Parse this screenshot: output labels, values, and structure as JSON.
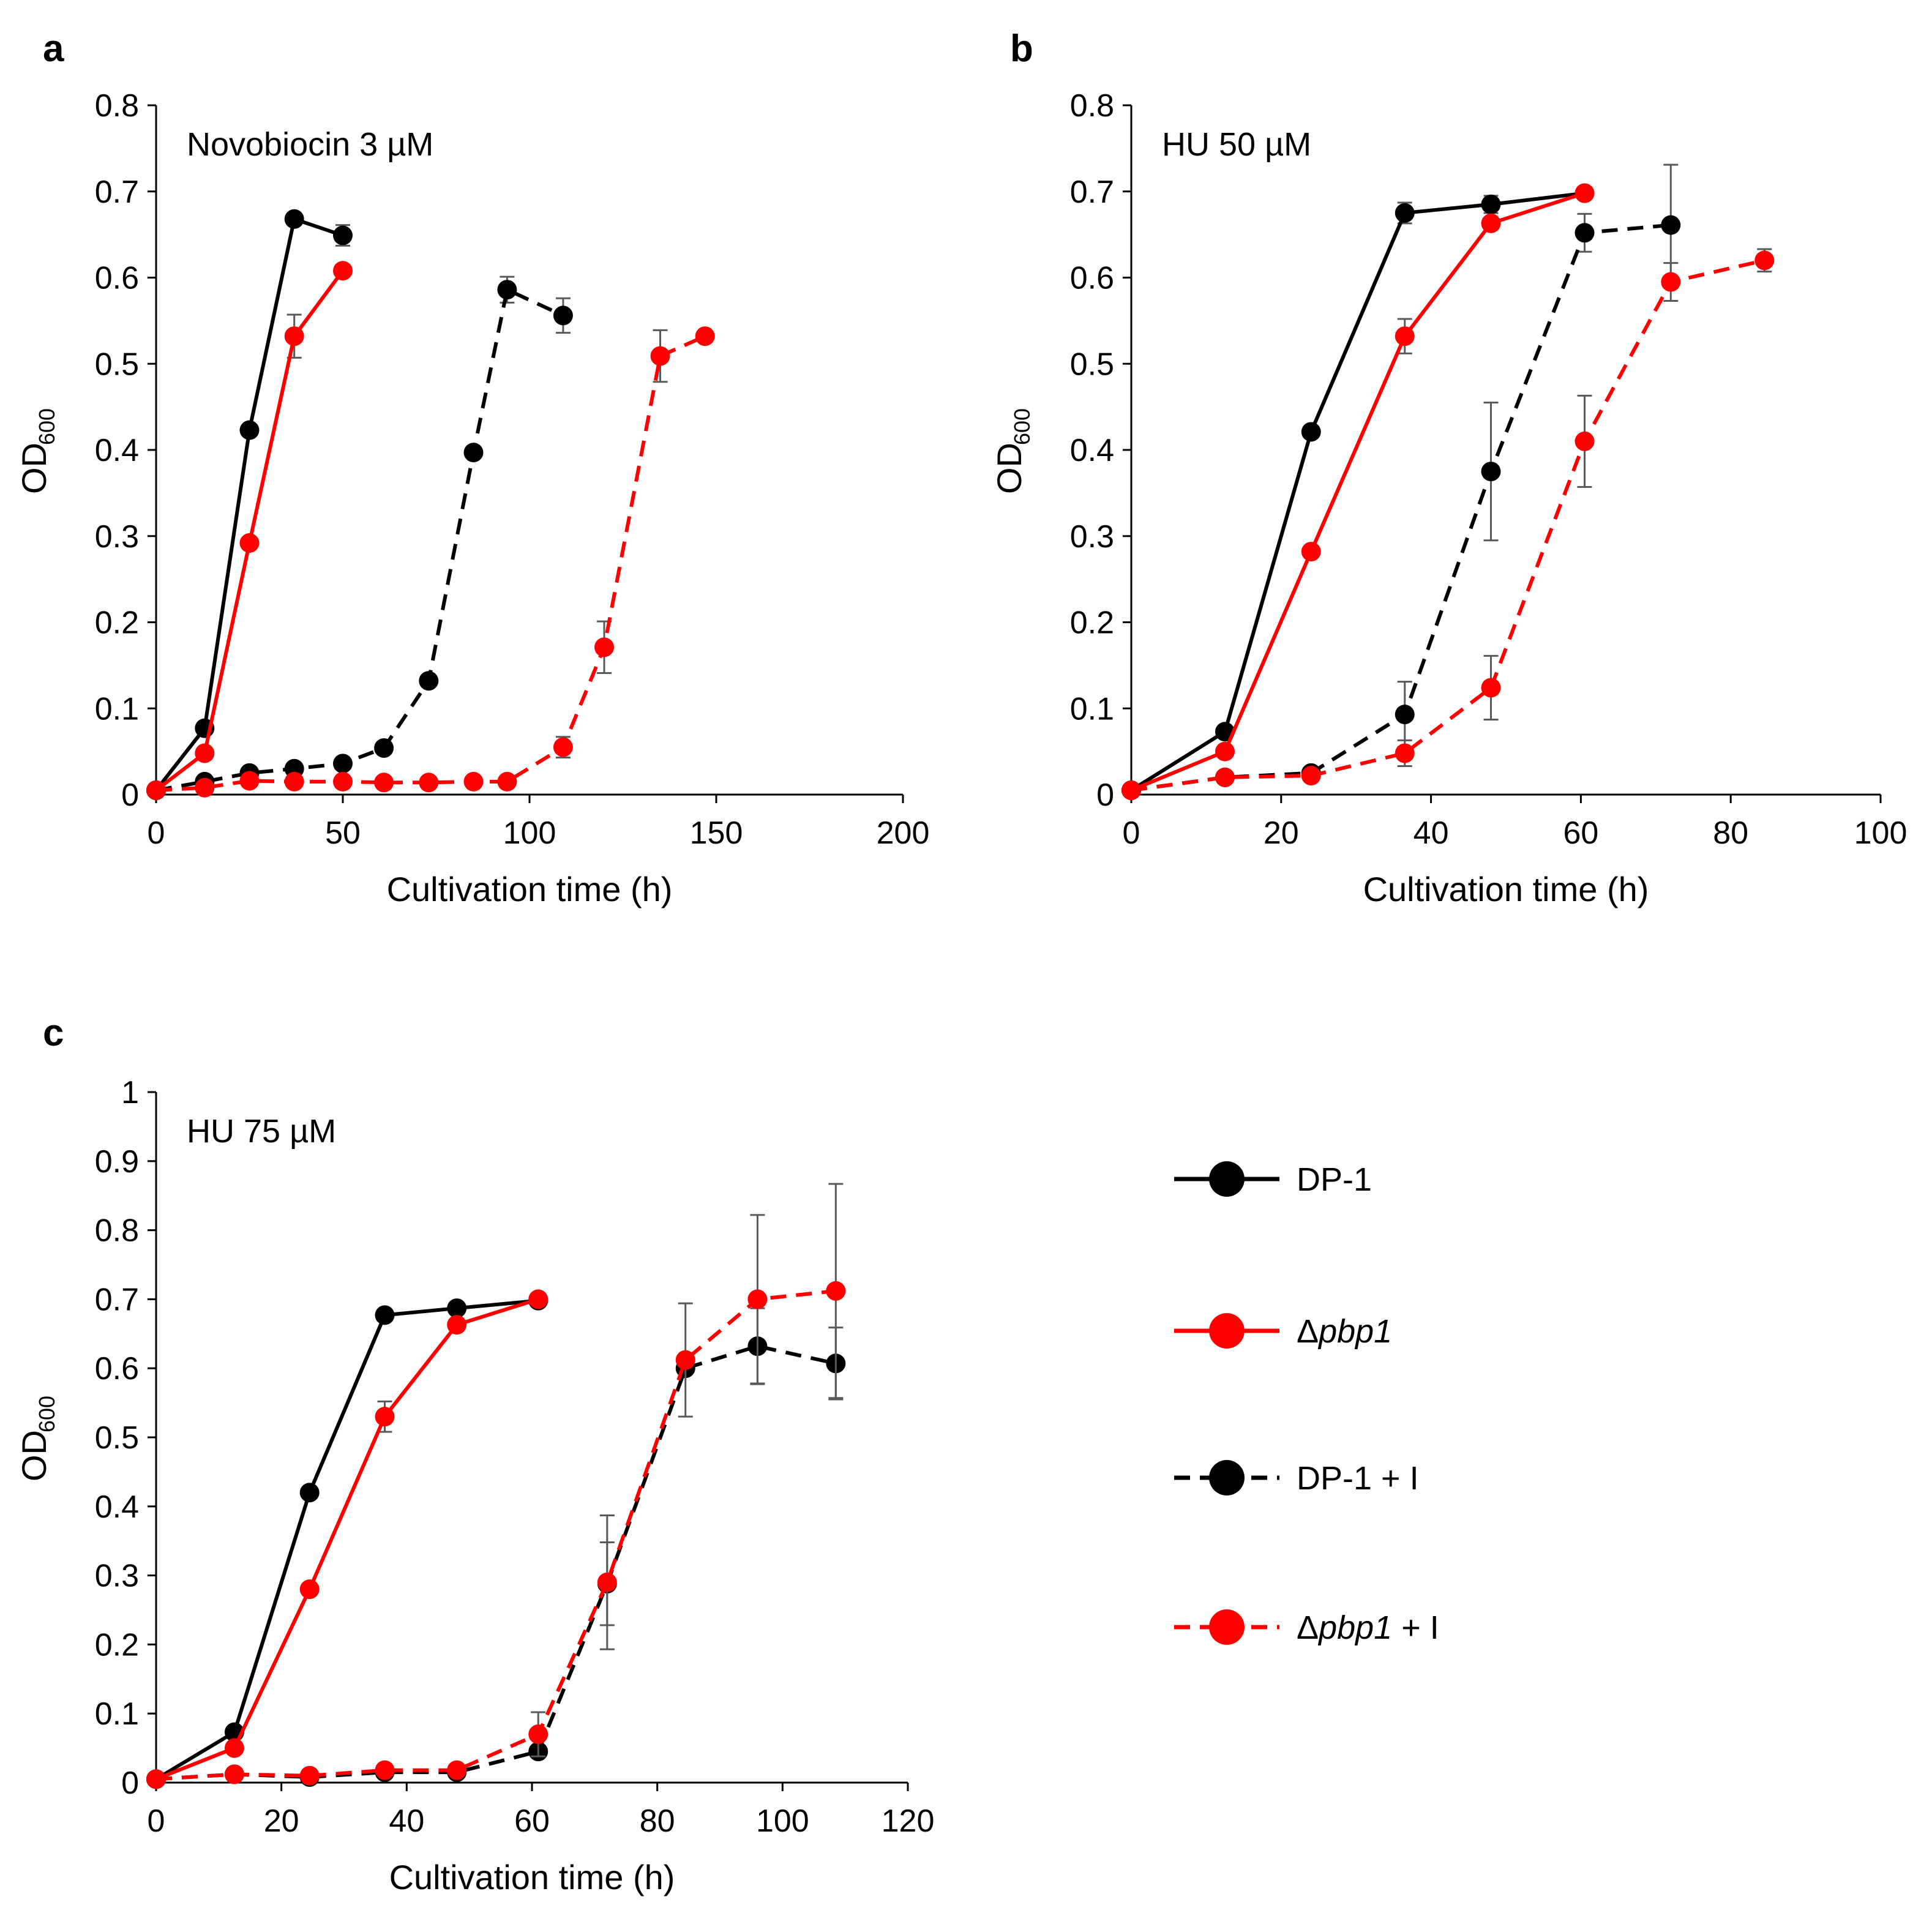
{
  "chart_data": [
    {
      "type": "line",
      "panel": "a",
      "annotation": "Novobiocin 3  µM",
      "xlabel": "Cultivation time (h)",
      "ylabel": "OD",
      "ylabel_sub": "600",
      "xlim": [
        0,
        200
      ],
      "ylim": [
        0,
        0.8
      ],
      "xticks": [
        "0",
        "50",
        "100",
        "150",
        "200"
      ],
      "yticks": [
        "0",
        "0.1",
        "0.2",
        "0.3",
        "0.4",
        "0.5",
        "0.6",
        "0.7",
        "0.8"
      ],
      "series": [
        {
          "name": "DP-1",
          "x": [
            0,
            13,
            25,
            37,
            50
          ],
          "y": [
            0.005,
            0.077,
            0.423,
            0.668,
            0.649
          ],
          "err": [
            0,
            0,
            0,
            0,
            0.012
          ],
          "color": "#000000",
          "dash": false
        },
        {
          "name": "Δpbp1",
          "x": [
            0,
            13,
            25,
            37,
            50
          ],
          "y": [
            0.005,
            0.048,
            0.292,
            0.532,
            0.608
          ],
          "err": [
            0,
            0,
            0,
            0.025,
            0
          ],
          "color": "#ff0000",
          "dash": false
        },
        {
          "name": "DP-1 + I",
          "x": [
            0,
            13,
            25,
            37,
            50,
            61,
            73,
            85,
            94,
            109
          ],
          "y": [
            0.005,
            0.015,
            0.025,
            0.03,
            0.036,
            0.054,
            0.132,
            0.397,
            0.586,
            0.556
          ],
          "err": [
            0,
            0,
            0,
            0,
            0,
            0,
            0,
            0,
            0.015,
            0.02
          ],
          "color": "#000000",
          "dash": true
        },
        {
          "name": "Δpbp1 + I",
          "x": [
            0,
            13,
            25,
            37,
            50,
            61,
            73,
            85,
            94,
            109,
            120,
            135,
            147
          ],
          "y": [
            0.005,
            0.008,
            0.016,
            0.015,
            0.015,
            0.014,
            0.014,
            0.015,
            0.015,
            0.055,
            0.171,
            0.509,
            0.532
          ],
          "err": [
            0,
            0,
            0,
            0,
            0,
            0,
            0,
            0,
            0,
            0.012,
            0.03,
            0.03,
            0
          ],
          "color": "#ff0000",
          "dash": true
        }
      ]
    },
    {
      "type": "line",
      "panel": "b",
      "annotation": "HU 50  µM",
      "xlabel": "Cultivation time (h)",
      "ylabel": "OD",
      "ylabel_sub": "600",
      "xlim": [
        0,
        100
      ],
      "ylim": [
        0,
        0.8
      ],
      "xticks": [
        "0",
        "20",
        "40",
        "60",
        "80",
        "100"
      ],
      "yticks": [
        "0",
        "0.1",
        "0.2",
        "0.3",
        "0.4",
        "0.5",
        "0.6",
        "0.7",
        "0.8"
      ],
      "series": [
        {
          "name": "DP-1",
          "x": [
            0,
            12.5,
            24,
            36.5,
            48,
            60.5
          ],
          "y": [
            0.005,
            0.073,
            0.421,
            0.675,
            0.685,
            0.698
          ],
          "err": [
            0,
            0,
            0,
            0.012,
            0.01,
            0
          ],
          "color": "#000000",
          "dash": false
        },
        {
          "name": "Δpbp1",
          "x": [
            0,
            12.5,
            24,
            36.5,
            48,
            60.5
          ],
          "y": [
            0.005,
            0.05,
            0.282,
            0.532,
            0.663,
            0.698
          ],
          "err": [
            0,
            0,
            0,
            0.02,
            0,
            0
          ],
          "color": "#ff0000",
          "dash": false
        },
        {
          "name": "DP-1 + I",
          "x": [
            0,
            12.5,
            24,
            36.5,
            48,
            60.5,
            72
          ],
          "y": [
            0.005,
            0.02,
            0.025,
            0.093,
            0.375,
            0.652,
            0.661
          ],
          "err": [
            0,
            0,
            0,
            0.038,
            0.08,
            0.022,
            0.07
          ],
          "color": "#000000",
          "dash": true
        },
        {
          "name": "Δpbp1 + I",
          "x": [
            0,
            12.5,
            24,
            36.5,
            48,
            60.5,
            72,
            84.5
          ],
          "y": [
            0.005,
            0.02,
            0.022,
            0.048,
            0.124,
            0.41,
            0.595,
            0.62
          ],
          "err": [
            0,
            0,
            0,
            0.015,
            0.037,
            0.053,
            0.022,
            0.013
          ],
          "color": "#ff0000",
          "dash": true
        }
      ]
    },
    {
      "type": "line",
      "panel": "c",
      "annotation": "HU 75  µM",
      "xlabel": "Cultivation time (h)",
      "ylabel": "OD",
      "ylabel_sub": "600",
      "xlim": [
        0,
        120
      ],
      "ylim": [
        0,
        1
      ],
      "xticks": [
        "0",
        "20",
        "40",
        "60",
        "80",
        "100",
        "120"
      ],
      "yticks": [
        "0",
        "0.1",
        "0.2",
        "0.3",
        "0.4",
        "0.5",
        "0.6",
        "0.7",
        "0.8",
        "0.9",
        "1"
      ],
      "series": [
        {
          "name": "DP-1",
          "x": [
            0,
            12.5,
            24.5,
            36.5,
            48,
            61
          ],
          "y": [
            0.005,
            0.073,
            0.42,
            0.677,
            0.687,
            0.698
          ],
          "err": [
            0,
            0,
            0,
            0,
            0,
            0
          ],
          "color": "#000000",
          "dash": false
        },
        {
          "name": "Δpbp1",
          "x": [
            0,
            12.5,
            24.5,
            36.5,
            48,
            61
          ],
          "y": [
            0.005,
            0.05,
            0.28,
            0.53,
            0.663,
            0.7
          ],
          "err": [
            0,
            0,
            0,
            0.022,
            0,
            0
          ],
          "color": "#ff0000",
          "dash": false
        },
        {
          "name": "DP-1 + I",
          "x": [
            0,
            12.5,
            24.5,
            36.5,
            48,
            61,
            72,
            84.5,
            96,
            108.5
          ],
          "y": [
            0.005,
            0.012,
            0.008,
            0.015,
            0.015,
            0.045,
            0.288,
            0.6,
            0.632,
            0.607
          ],
          "err": [
            0,
            0,
            0,
            0,
            0,
            0,
            0.06,
            0,
            0.055,
            0.052
          ],
          "color": "#000000",
          "dash": true
        },
        {
          "name": "Δpbp1 + I",
          "x": [
            0,
            12.5,
            24.5,
            36.5,
            48,
            61,
            72,
            84.5,
            96,
            108.5
          ],
          "y": [
            0.005,
            0.012,
            0.01,
            0.018,
            0.018,
            0.07,
            0.29,
            0.612,
            0.7,
            0.712
          ],
          "err": [
            0,
            0,
            0,
            0,
            0,
            0.032,
            0.097,
            0.082,
            0.122,
            0.155
          ],
          "color": "#ff0000",
          "dash": true
        }
      ]
    }
  ],
  "legend": {
    "items": [
      {
        "label": "DP-1",
        "color": "#000000",
        "dash": false
      },
      {
        "label": "Δ",
        "label_italic": "pbp1",
        "label_suffix": "",
        "color": "#ff0000",
        "dash": false
      },
      {
        "label": "DP-1 + I",
        "color": "#000000",
        "dash": true
      },
      {
        "label": "Δ",
        "label_italic": "pbp1",
        "label_suffix": " + I",
        "color": "#ff0000",
        "dash": true
      }
    ]
  },
  "colors": {
    "black": "#000000",
    "red": "#ff0000",
    "errorbar": "#595959",
    "axis": "#000000"
  }
}
